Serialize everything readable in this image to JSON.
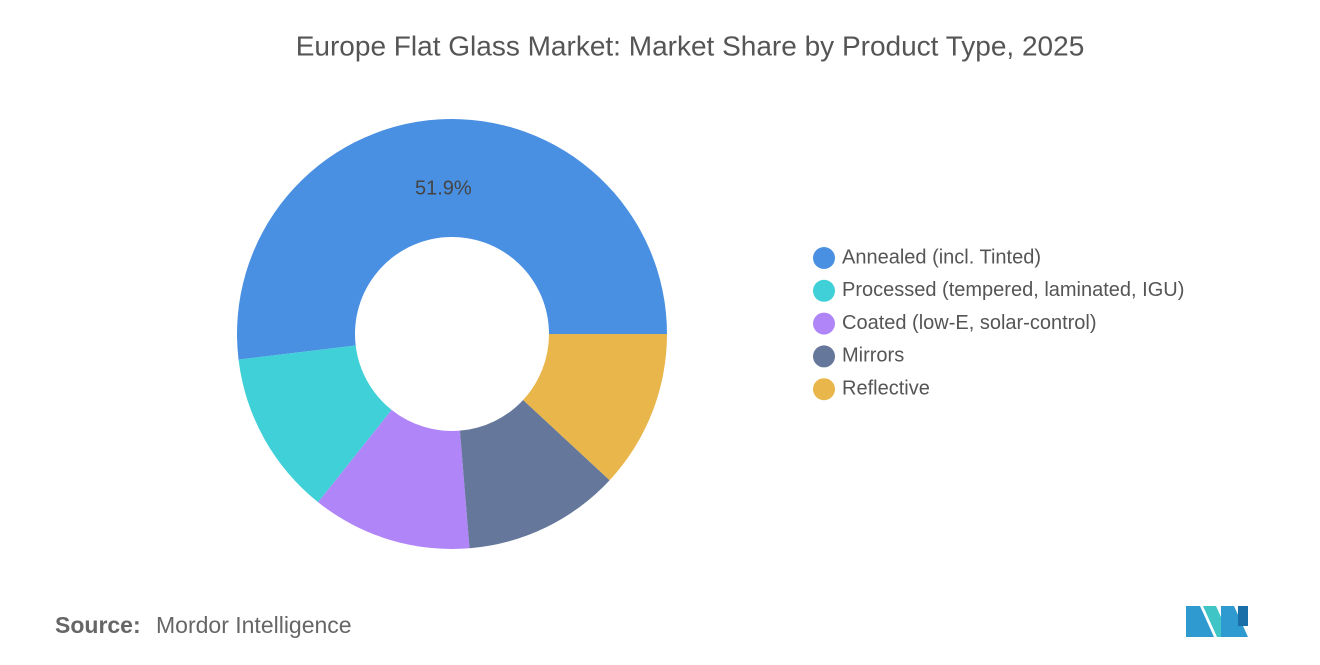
{
  "chart_data": {
    "type": "donut",
    "title": "Europe Flat Glass Market: Market Share by Product Type, 2025",
    "categories": [
      "Annealed (incl. Tinted)",
      "Processed (tempered, laminated, IGU)",
      "Coated (low-E, solar-control)",
      "Mirrors",
      "Reflective"
    ],
    "values": [
      51.9,
      12.4,
      12.0,
      11.8,
      11.9
    ],
    "value_labels": [
      "51.9%",
      null,
      null,
      null,
      null
    ],
    "colors": [
      "#4a90e2",
      "#40d0d8",
      "#b085f8",
      "#65779a",
      "#e8b64a"
    ],
    "legend": "right",
    "source_label": "Source:",
    "source": "Mordor Intelligence"
  }
}
